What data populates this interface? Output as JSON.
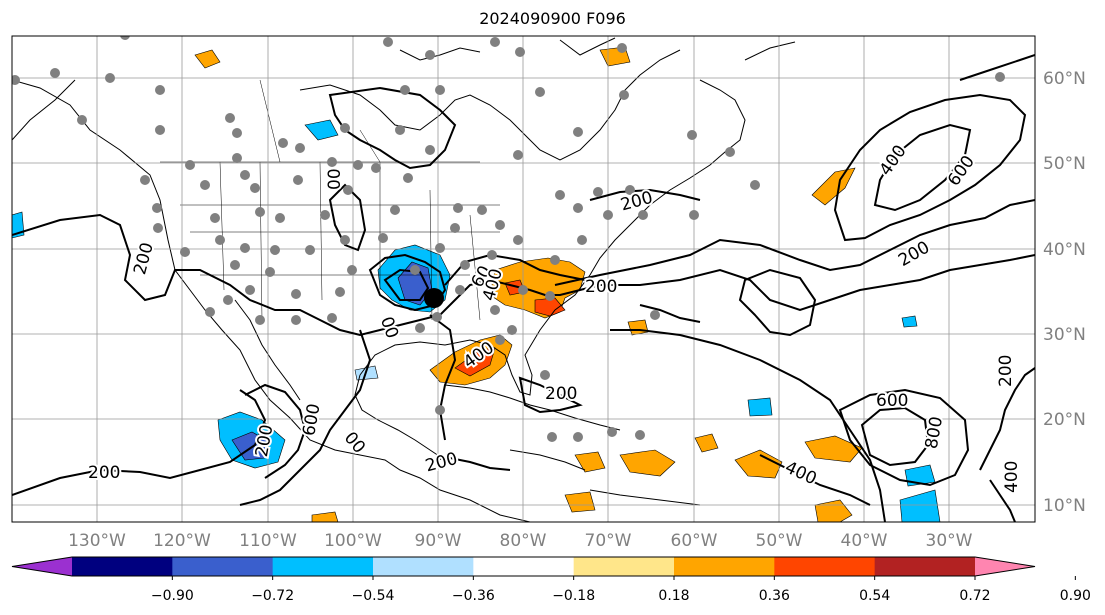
{
  "title": "2024090900 F096",
  "map": {
    "lon_labels": [
      "130°W",
      "120°W",
      "110°W",
      "100°W",
      "90°W",
      "80°W",
      "70°W",
      "60°W",
      "50°W",
      "40°W",
      "30°W"
    ],
    "lat_labels": [
      "60°N",
      "50°N",
      "40°N",
      "30°N",
      "20°N",
      "10°N"
    ],
    "contour_labels": [
      "200",
      "200",
      "200",
      "200",
      "200",
      "200",
      "200",
      "400",
      "400",
      "400",
      "600",
      "600",
      "600",
      "800",
      "400",
      "200",
      "00",
      "00",
      "00",
      "200",
      "60",
      "400"
    ]
  },
  "colorbar": {
    "tick_labels": [
      "−0.90",
      "−0.72",
      "−0.54",
      "−0.36",
      "−0.18",
      "0.18",
      "0.36",
      "0.54",
      "0.72",
      "0.90"
    ],
    "colors": [
      "#9b30d0",
      "#00007f",
      "#3a5fcd",
      "#00bfff",
      "#b0e0ff",
      "#ffffff",
      "#ffe68a",
      "#ffa500",
      "#ff4500",
      "#b22222",
      "#ff85b0"
    ]
  }
}
